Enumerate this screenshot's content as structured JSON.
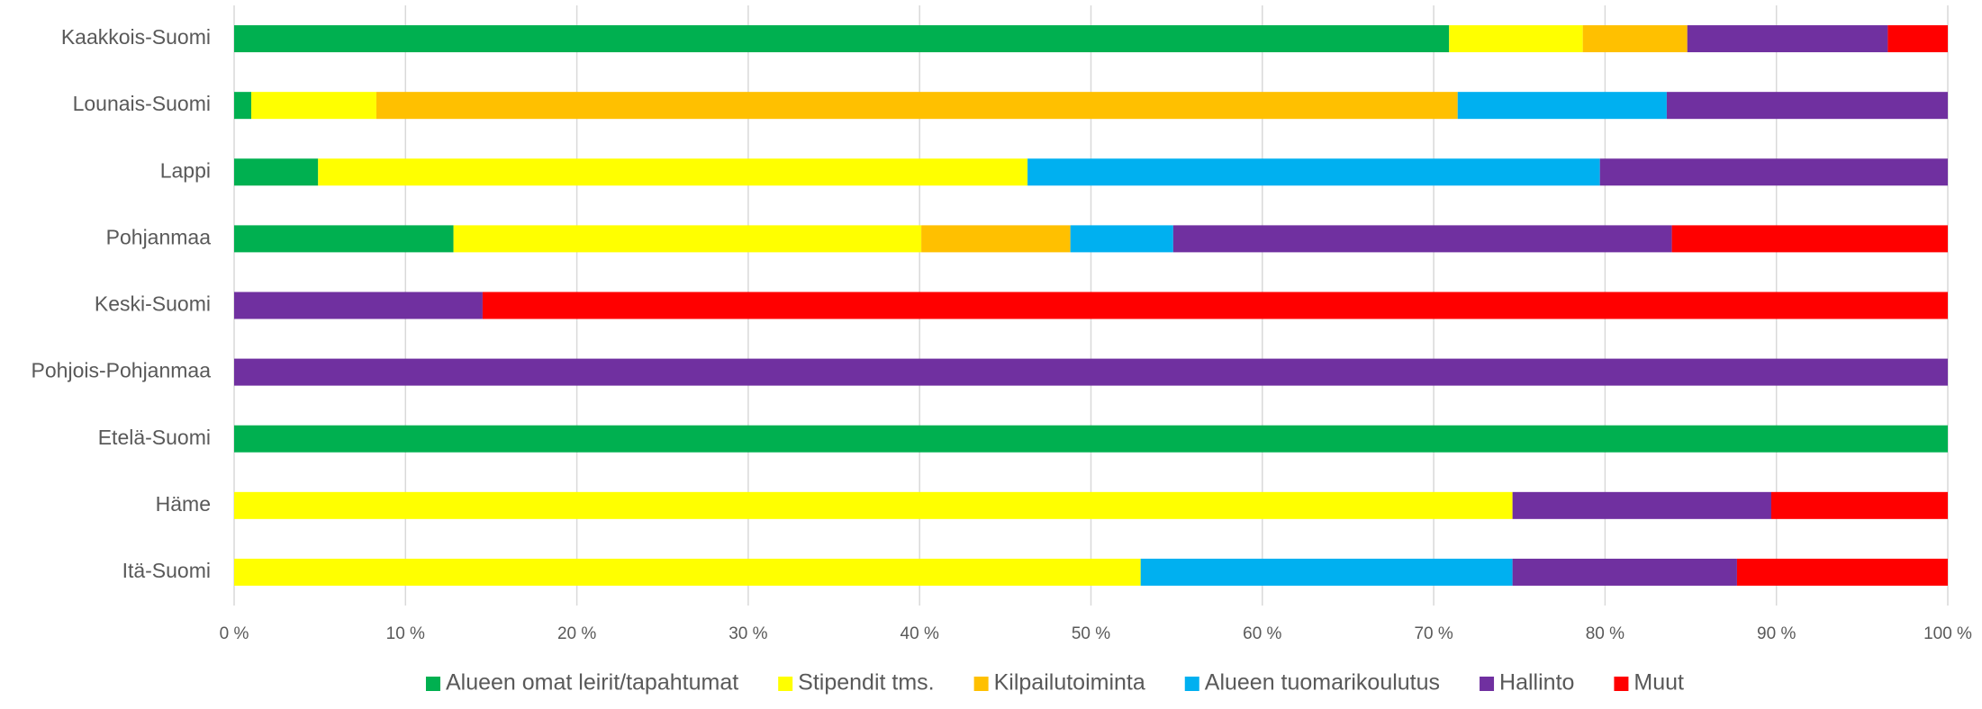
{
  "chart_data": {
    "type": "stacked_barh",
    "categories": [
      "Kaakkois-Suomi",
      "Lounais-Suomi",
      "Lappi",
      "Pohjanmaa",
      "Keski-Suomi",
      "Pohjois-Pohjanmaa",
      "Etelä-Suomi",
      "Häme",
      "Itä-Suomi"
    ],
    "series": [
      {
        "name": "Alueen omat leirit/tapahtumat",
        "color": "#00b050",
        "values": [
          70.9,
          1.0,
          4.9,
          12.8,
          0,
          0,
          100,
          0,
          0
        ]
      },
      {
        "name": "Stipendit tms.",
        "color": "#ffff00",
        "values": [
          7.8,
          7.3,
          41.4,
          27.3,
          0,
          0,
          0,
          74.6,
          52.9
        ]
      },
      {
        "name": "Kilpailutoiminta",
        "color": "#ffc000",
        "values": [
          6.1,
          63.1,
          0,
          8.7,
          0,
          0,
          0,
          0,
          0
        ]
      },
      {
        "name": "Alueen tuomarikoulutus",
        "color": "#00b0f0",
        "values": [
          0,
          12.2,
          33.4,
          6.0,
          0,
          0,
          0,
          0,
          21.7
        ]
      },
      {
        "name": "Hallinto",
        "color": "#7030a0",
        "values": [
          11.7,
          16.4,
          20.3,
          29.1,
          14.5,
          100,
          0,
          15.1,
          13.1
        ]
      },
      {
        "name": "Muut",
        "color": "#ff0000",
        "values": [
          3.5,
          0,
          0,
          16.1,
          85.5,
          0,
          0,
          10.3,
          12.3
        ]
      }
    ],
    "xlim": [
      0,
      100
    ],
    "xticks": [
      {
        "value": 0,
        "label": "0 %"
      },
      {
        "value": 10,
        "label": "10 %"
      },
      {
        "value": 20,
        "label": "20 %"
      },
      {
        "value": 30,
        "label": "30 %"
      },
      {
        "value": 40,
        "label": "40 %"
      },
      {
        "value": 50,
        "label": "50 %"
      },
      {
        "value": 60,
        "label": "60 %"
      },
      {
        "value": 70,
        "label": "70 %"
      },
      {
        "value": 80,
        "label": "80 %"
      },
      {
        "value": 90,
        "label": "90 %"
      },
      {
        "value": 100,
        "label": "100 %"
      }
    ],
    "grid": true,
    "legend": "bottom"
  }
}
